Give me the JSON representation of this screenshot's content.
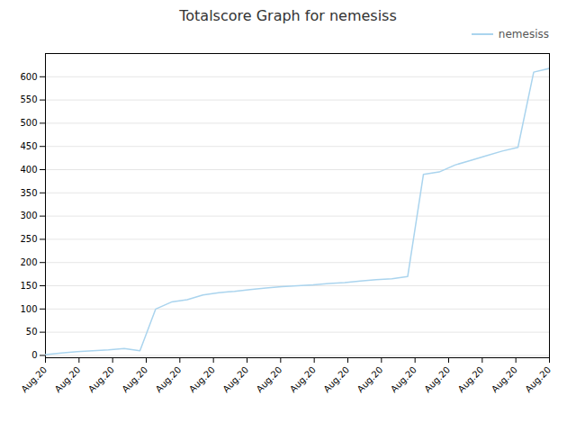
{
  "chart_data": {
    "type": "line",
    "title": "Totalscore Graph for nemesiss",
    "x": [
      0,
      0.46875,
      0.9375,
      1.40625,
      1.875,
      2.34375,
      2.8125,
      3.28125,
      3.75,
      4.21875,
      4.6875,
      5.15625,
      5.625,
      6.09375,
      6.5625,
      7.03125,
      7.5,
      7.96875,
      8.4375,
      8.90625,
      9.375,
      9.84375,
      10.3125,
      10.78125,
      11.25,
      11.71875,
      12.1875,
      12.65625,
      13.125,
      13.59375,
      14.0625,
      14.53125,
      15
    ],
    "series": [
      {
        "name": "nemesiss",
        "color": "#aad4ee",
        "values": [
          2,
          5,
          8,
          10,
          12,
          15,
          10,
          100,
          115,
          120,
          130,
          135,
          138,
          142,
          145,
          148,
          150,
          152,
          155,
          157,
          160,
          163,
          165,
          170,
          390,
          395,
          410,
          420,
          430,
          440,
          448,
          610,
          618
        ]
      }
    ],
    "xlim": [
      0,
      15
    ],
    "xticks": [
      {
        "value": 0,
        "label": "Aug.20"
      },
      {
        "value": 1,
        "label": "Aug.20"
      },
      {
        "value": 2,
        "label": "Aug.20"
      },
      {
        "value": 3,
        "label": "Aug.20"
      },
      {
        "value": 4,
        "label": "Aug.20"
      },
      {
        "value": 5,
        "label": "Aug.20"
      },
      {
        "value": 6,
        "label": "Aug.20"
      },
      {
        "value": 7,
        "label": "Aug.20"
      },
      {
        "value": 8,
        "label": "Aug.20"
      },
      {
        "value": 9,
        "label": "Aug.20"
      },
      {
        "value": 10,
        "label": "Aug.20"
      },
      {
        "value": 11,
        "label": "Aug.20"
      },
      {
        "value": 12,
        "label": "Aug.20"
      },
      {
        "value": 13,
        "label": "Aug.20"
      },
      {
        "value": 14,
        "label": "Aug.20"
      },
      {
        "value": 15,
        "label": "Aug.20"
      }
    ],
    "ylim": [
      -5,
      650
    ],
    "yticks": [
      0,
      50,
      100,
      150,
      200,
      250,
      300,
      350,
      400,
      450,
      500,
      550,
      600
    ],
    "grid": true,
    "legend": "upper right"
  }
}
